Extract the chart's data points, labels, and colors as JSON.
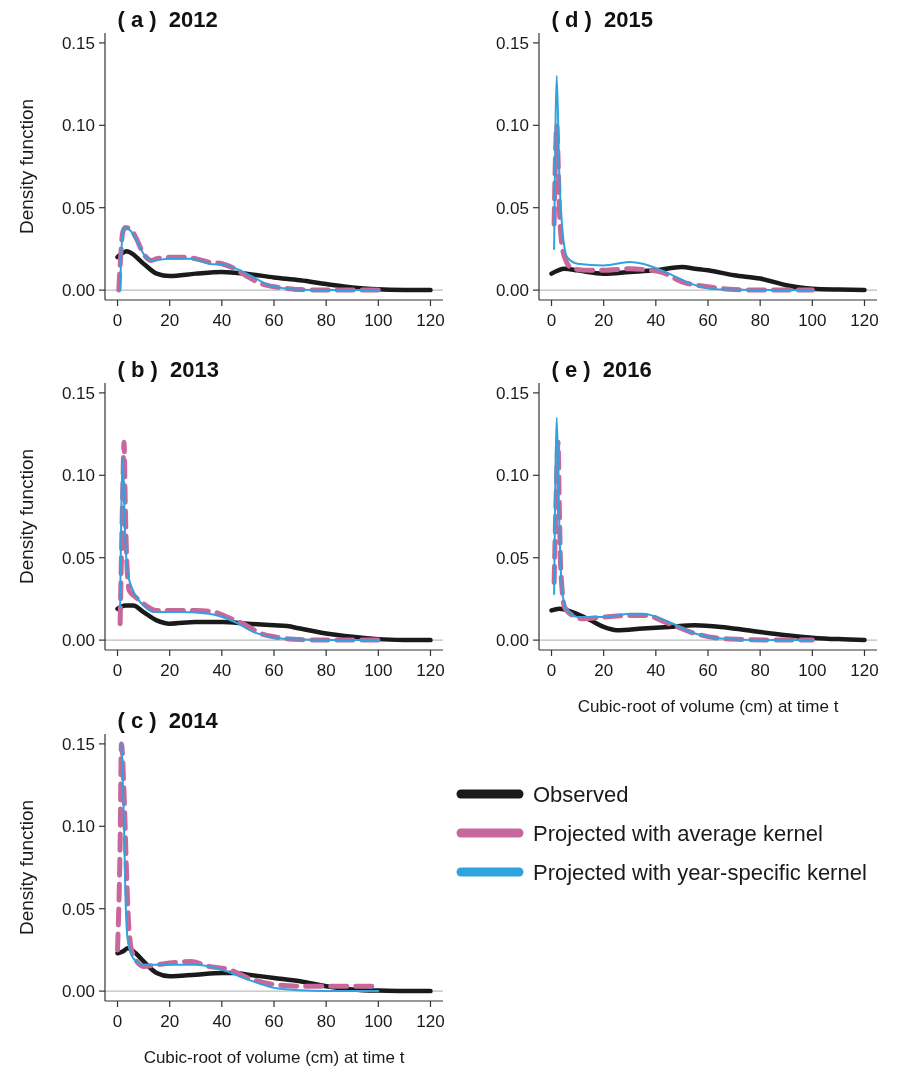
{
  "chart_data": [
    {
      "type": "line",
      "title": "( a )  2012",
      "ylabel": "Density function",
      "xlim": [
        -4.8,
        124.8
      ],
      "ylim": [
        -0.006,
        0.156
      ],
      "xticks": [
        0,
        20,
        40,
        60,
        80,
        100,
        120
      ],
      "yticks": [
        {
          "value": 0,
          "label": "0.00"
        },
        {
          "value": 0.05,
          "label": "0.05"
        },
        {
          "value": 0.1,
          "label": "0.10"
        },
        {
          "value": 0.15,
          "label": "0.15"
        }
      ],
      "ref_lines": [
        {
          "axis": "y",
          "value": 0,
          "color": "#bdbdbd"
        }
      ],
      "series": [
        {
          "color": "#1a1a1a",
          "line_style": "solid",
          "x": [
            0,
            3.5,
            10,
            15,
            20,
            30,
            40,
            50,
            60,
            70,
            80,
            90,
            100,
            110,
            120
          ],
          "values": [
            0.02,
            0.0236,
            0.016,
            0.01,
            0.0085,
            0.01,
            0.011,
            0.0098,
            0.0077,
            0.006,
            0.0037,
            0.0016,
            0.0005,
            0.0001,
            0
          ]
        },
        {
          "color": "#c8679b",
          "line_style": "dashed",
          "x": [
            0.5,
            1,
            2,
            3,
            5,
            7,
            10,
            13,
            15,
            20,
            25,
            30,
            35,
            40,
            45,
            50,
            55,
            60,
            65,
            70,
            80,
            100
          ],
          "values": [
            0,
            0.015,
            0.035,
            0.038,
            0.037,
            0.032,
            0.022,
            0.018,
            0.019,
            0.02,
            0.02,
            0.019,
            0.017,
            0.016,
            0.013,
            0.008,
            0.004,
            0.002,
            0.001,
            0.0003,
            0,
            0
          ]
        },
        {
          "color": "#2ea3dc",
          "line_style": "solid",
          "x": [
            1,
            2,
            3,
            5,
            8,
            10,
            13,
            20,
            28,
            35,
            42,
            47,
            52,
            58,
            65,
            70,
            80,
            100
          ],
          "values": [
            0,
            0.036,
            0.038,
            0.036,
            0.028,
            0.022,
            0.018,
            0.019,
            0.019,
            0.016,
            0.015,
            0.012,
            0.008,
            0.003,
            0.0008,
            0.0002,
            0,
            0
          ]
        }
      ]
    },
    {
      "type": "line",
      "title": "( b )  2013",
      "ylabel": "Density function",
      "xlim": [
        -4.8,
        124.8
      ],
      "ylim": [
        -0.006,
        0.156
      ],
      "xticks": [
        0,
        20,
        40,
        60,
        80,
        100,
        120
      ],
      "yticks": [
        {
          "value": 0,
          "label": "0.00"
        },
        {
          "value": 0.05,
          "label": "0.05"
        },
        {
          "value": 0.1,
          "label": "0.10"
        },
        {
          "value": 0.15,
          "label": "0.15"
        }
      ],
      "ref_lines": [
        {
          "axis": "y",
          "value": 0,
          "color": "#bdbdbd"
        }
      ],
      "series": [
        {
          "color": "#1a1a1a",
          "line_style": "solid",
          "x": [
            0,
            3,
            6,
            10,
            15,
            20,
            30,
            40,
            50,
            60,
            65,
            70,
            80,
            90,
            100,
            110,
            120
          ],
          "values": [
            0.019,
            0.021,
            0.021,
            0.017,
            0.012,
            0.01,
            0.011,
            0.011,
            0.01,
            0.009,
            0.0085,
            0.007,
            0.004,
            0.002,
            0.0006,
            0.0001,
            0
          ]
        },
        {
          "color": "#c8679b",
          "line_style": "dashed",
          "x": [
            1,
            1.5,
            2,
            2.5,
            3,
            3.5,
            4.5,
            7,
            10,
            15,
            20,
            30,
            37,
            42,
            48,
            55,
            60,
            70,
            80,
            100
          ],
          "values": [
            0.01,
            0.05,
            0.09,
            0.12,
            0.08,
            0.05,
            0.03,
            0.026,
            0.022,
            0.018,
            0.018,
            0.018,
            0.017,
            0.014,
            0.01,
            0.004,
            0.002,
            0.0003,
            0,
            0
          ]
        },
        {
          "color": "#2ea3dc",
          "line_style": "solid",
          "x": [
            1,
            2,
            3,
            4,
            6,
            10,
            14,
            25,
            35,
            45,
            52,
            60,
            70,
            80,
            100
          ],
          "values": [
            0.02,
            0.11,
            0.06,
            0.04,
            0.03,
            0.021,
            0.017,
            0.017,
            0.016,
            0.011,
            0.005,
            0.0015,
            0.0003,
            0,
            0
          ]
        }
      ]
    },
    {
      "type": "line",
      "title": "( c )  2014",
      "xlabel": "Cubic-root of volume (cm) at time t",
      "ylabel": "Density function",
      "legend": "right",
      "xlim": [
        -4.8,
        124.8
      ],
      "ylim": [
        -0.006,
        0.156
      ],
      "xticks": [
        0,
        20,
        40,
        60,
        80,
        100,
        120
      ],
      "yticks": [
        {
          "value": 0,
          "label": "0.00"
        },
        {
          "value": 0.05,
          "label": "0.05"
        },
        {
          "value": 0.1,
          "label": "0.10"
        },
        {
          "value": 0.15,
          "label": "0.15"
        }
      ],
      "ref_lines": [
        {
          "axis": "y",
          "value": 0,
          "color": "#bdbdbd"
        }
      ],
      "series": [
        {
          "name": "Observed",
          "color": "#1a1a1a",
          "line_style": "solid",
          "x": [
            0,
            2,
            4,
            7,
            10,
            15,
            20,
            30,
            40,
            45,
            50,
            60,
            70,
            80,
            90,
            100,
            110,
            120
          ],
          "values": [
            0.023,
            0.024,
            0.026,
            0.023,
            0.018,
            0.011,
            0.009,
            0.01,
            0.011,
            0.011,
            0.01,
            0.008,
            0.006,
            0.003,
            0.001,
            0.0003,
            0.0001,
            0
          ]
        },
        {
          "name": "Projected with average kernel",
          "color": "#c8679b",
          "line_style": "dashed",
          "x": [
            0,
            1,
            1.5,
            2.5,
            3.5,
            4.5,
            6,
            10,
            15,
            20,
            28,
            35,
            43,
            50,
            60,
            70,
            80,
            90,
            100
          ],
          "values": [
            0.025,
            0.09,
            0.15,
            0.12,
            0.07,
            0.035,
            0.022,
            0.015,
            0.016,
            0.017,
            0.018,
            0.015,
            0.013,
            0.008,
            0.004,
            0.003,
            0.003,
            0.003,
            0.003
          ]
        },
        {
          "name": "Projected with year-specific kernel",
          "color": "#2ea3dc",
          "line_style": "solid",
          "x": [
            1.5,
            2.5,
            3,
            4,
            6,
            10,
            20,
            30,
            40,
            50,
            60,
            70,
            80,
            100
          ],
          "values": [
            0.15,
            0.1,
            0.06,
            0.03,
            0.02,
            0.016,
            0.016,
            0.016,
            0.013,
            0.007,
            0.002,
            0.0005,
            0,
            0
          ]
        }
      ]
    },
    {
      "type": "line",
      "title": "( d )  2015",
      "xlim": [
        -4.8,
        124.8
      ],
      "ylim": [
        -0.006,
        0.156
      ],
      "xticks": [
        0,
        20,
        40,
        60,
        80,
        100,
        120
      ],
      "yticks": [
        {
          "value": 0,
          "label": "0.00"
        },
        {
          "value": 0.05,
          "label": "0.05"
        },
        {
          "value": 0.1,
          "label": "0.10"
        },
        {
          "value": 0.15,
          "label": "0.15"
        }
      ],
      "ref_lines": [
        {
          "axis": "y",
          "value": 0,
          "color": "#bdbdbd"
        }
      ],
      "series": [
        {
          "color": "#1a1a1a",
          "line_style": "solid",
          "x": [
            0,
            5,
            10,
            20,
            30,
            40,
            50,
            55,
            60,
            70,
            80,
            90,
            100,
            110,
            120
          ],
          "values": [
            0.01,
            0.013,
            0.012,
            0.01,
            0.011,
            0.012,
            0.014,
            0.013,
            0.012,
            0.009,
            0.007,
            0.003,
            0.0008,
            0.0003,
            0.0001
          ]
        },
        {
          "color": "#c8679b",
          "line_style": "dashed",
          "x": [
            1,
            1.5,
            2,
            2.5,
            3,
            3.5,
            5,
            8,
            15,
            20,
            30,
            38,
            42,
            50,
            60,
            70,
            80,
            100
          ],
          "values": [
            0.04,
            0.08,
            0.1,
            0.08,
            0.05,
            0.035,
            0.02,
            0.013,
            0.012,
            0.012,
            0.013,
            0.012,
            0.011,
            0.005,
            0.002,
            0.0003,
            0,
            0
          ]
        },
        {
          "color": "#2ea3dc",
          "line_style": "solid",
          "x": [
            1,
            2,
            3,
            4,
            6,
            10,
            20,
            30,
            35,
            45,
            55,
            65,
            80,
            100
          ],
          "values": [
            0.025,
            0.13,
            0.07,
            0.04,
            0.02,
            0.016,
            0.015,
            0.017,
            0.016,
            0.01,
            0.003,
            0.0003,
            0,
            0
          ]
        }
      ]
    },
    {
      "type": "line",
      "title": "( e )  2016",
      "xlabel": "Cubic-root of volume (cm) at time t",
      "xlim": [
        -4.8,
        124.8
      ],
      "ylim": [
        -0.006,
        0.156
      ],
      "xticks": [
        0,
        20,
        40,
        60,
        80,
        100,
        120
      ],
      "yticks": [
        {
          "value": 0,
          "label": "0.00"
        },
        {
          "value": 0.05,
          "label": "0.05"
        },
        {
          "value": 0.1,
          "label": "0.10"
        },
        {
          "value": 0.15,
          "label": "0.15"
        }
      ],
      "ref_lines": [
        {
          "axis": "y",
          "value": 0,
          "color": "#bdbdbd"
        }
      ],
      "series": [
        {
          "color": "#1a1a1a",
          "line_style": "solid",
          "x": [
            0,
            3,
            8,
            15,
            20,
            25,
            35,
            45,
            55,
            65,
            75,
            90,
            100,
            110,
            120
          ],
          "values": [
            0.018,
            0.019,
            0.017,
            0.012,
            0.008,
            0.006,
            0.007,
            0.008,
            0.009,
            0.008,
            0.006,
            0.003,
            0.0015,
            0.0006,
            0.0001
          ]
        },
        {
          "color": "#c8679b",
          "line_style": "dashed",
          "x": [
            1,
            1.5,
            2,
            2.5,
            3,
            3.5,
            5,
            8,
            12,
            20,
            30,
            36,
            45,
            55,
            65,
            75,
            90,
            100
          ],
          "values": [
            0.035,
            0.07,
            0.1,
            0.12,
            0.08,
            0.045,
            0.02,
            0.015,
            0.013,
            0.014,
            0.015,
            0.015,
            0.01,
            0.004,
            0.001,
            0.0003,
            0,
            0
          ]
        },
        {
          "color": "#2ea3dc",
          "line_style": "solid",
          "x": [
            1,
            2,
            3,
            4,
            6,
            10,
            20,
            30,
            35,
            45,
            55,
            65,
            80,
            100
          ],
          "values": [
            0.028,
            0.135,
            0.07,
            0.03,
            0.018,
            0.014,
            0.014,
            0.016,
            0.016,
            0.011,
            0.004,
            0.001,
            0,
            0
          ]
        }
      ]
    }
  ]
}
